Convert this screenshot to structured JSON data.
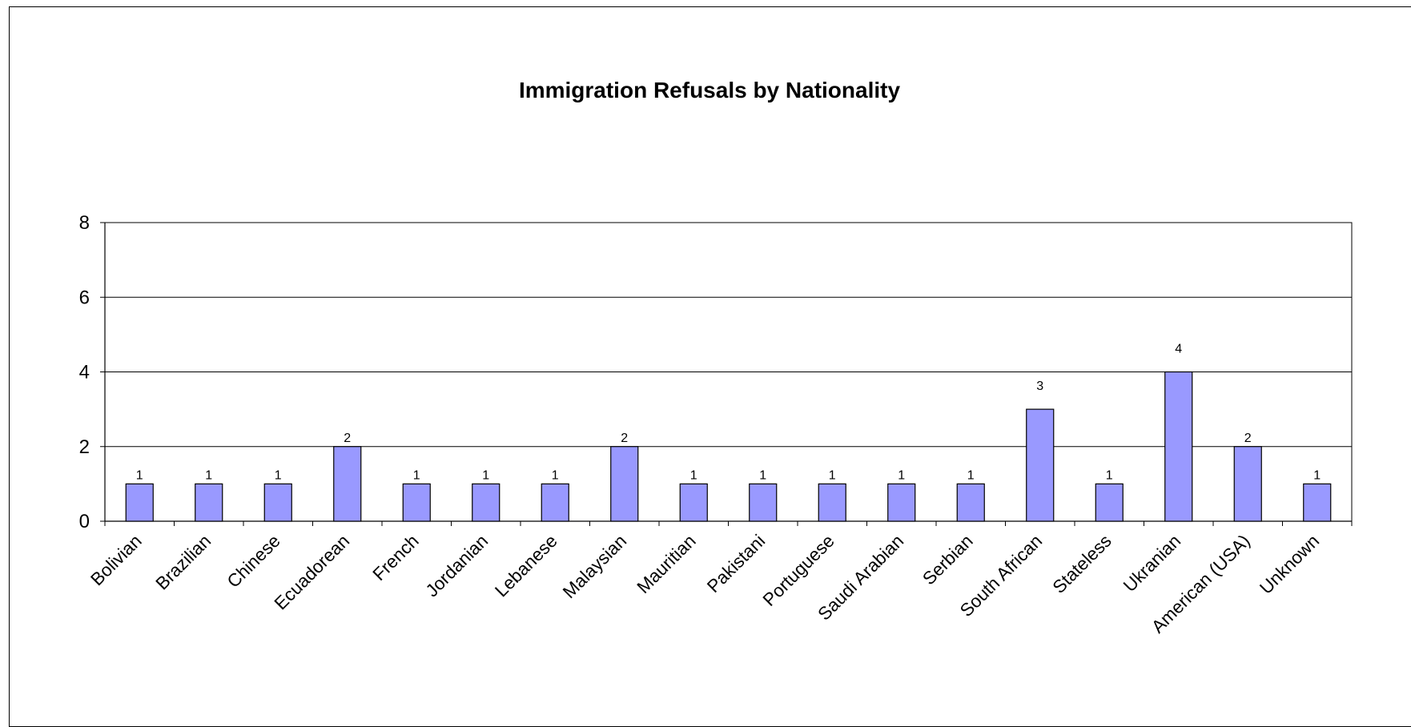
{
  "chart_data": {
    "type": "bar",
    "title": "Immigration Refusals by Nationality",
    "xlabel": "",
    "ylabel": "",
    "categories": [
      "Bolivian",
      "Brazilian",
      "Chinese",
      "Ecuadorean",
      "French",
      "Jordanian",
      "Lebanese",
      "Malaysian",
      "Mauritian",
      "Pakistani",
      "Portuguese",
      "Saudi Arabian",
      "Serbian",
      "South African",
      "Stateless",
      "Ukranian",
      "American (USA)",
      "Unknown"
    ],
    "values": [
      1,
      1,
      1,
      2,
      1,
      1,
      1,
      2,
      1,
      1,
      1,
      1,
      1,
      3,
      1,
      4,
      2,
      1
    ],
    "ylim": [
      0,
      8
    ],
    "yticks": [
      0,
      2,
      4,
      6,
      8
    ],
    "grid": true,
    "legend": "none",
    "bar_color": "#9999ff",
    "bar_stroke": "#000000"
  }
}
